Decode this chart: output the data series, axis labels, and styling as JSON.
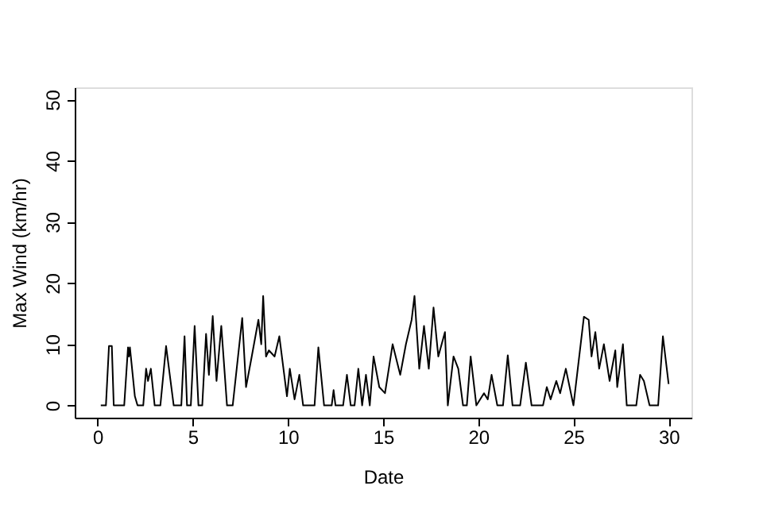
{
  "chart_data": {
    "type": "line",
    "xlabel": "Date",
    "ylabel": "Max Wind (km/hr)",
    "x": [
      0.17,
      0.44,
      0.6,
      0.75,
      0.85,
      1.4,
      1.6,
      1.65,
      1.7,
      1.96,
      2.1,
      2.4,
      2.55,
      2.65,
      2.8,
      3.0,
      3.3,
      3.6,
      4.0,
      4.4,
      4.57,
      4.7,
      4.9,
      5.1,
      5.3,
      5.5,
      5.7,
      5.85,
      6.05,
      6.25,
      6.5,
      6.8,
      7.1,
      7.6,
      7.8,
      8.1,
      8.45,
      8.6,
      8.7,
      8.85,
      9.0,
      9.3,
      9.55,
      9.95,
      10.1,
      10.35,
      10.6,
      10.8,
      11.4,
      11.6,
      11.9,
      12.3,
      12.4,
      12.5,
      12.9,
      13.1,
      13.3,
      13.5,
      13.7,
      13.9,
      14.1,
      14.3,
      14.5,
      14.8,
      15.1,
      15.5,
      15.9,
      16.2,
      16.5,
      16.65,
      16.9,
      17.15,
      17.4,
      17.65,
      17.9,
      18.25,
      18.4,
      18.7,
      18.95,
      19.2,
      19.4,
      19.6,
      19.9,
      20.3,
      20.5,
      20.7,
      21.0,
      21.3,
      21.55,
      21.8,
      22.2,
      22.5,
      22.8,
      23.4,
      23.6,
      23.8,
      24.1,
      24.3,
      24.6,
      25.0,
      25.55,
      25.8,
      25.95,
      26.15,
      26.35,
      26.6,
      26.9,
      27.2,
      27.3,
      27.6,
      27.8,
      28.3,
      28.5,
      28.7,
      29.0,
      29.45,
      29.7,
      30.0
    ],
    "values": [
      0,
      0,
      9.7,
      9.7,
      0,
      0,
      9.5,
      8,
      9.5,
      1.5,
      0,
      0,
      6,
      4,
      6,
      0,
      0,
      9.7,
      0,
      0,
      11.3,
      0,
      0,
      13,
      0,
      0,
      11.7,
      5,
      14.6,
      4,
      13,
      0,
      0,
      14.3,
      3,
      8,
      14,
      10,
      17.9,
      8,
      9,
      8,
      11.3,
      1.5,
      6,
      1,
      5,
      0,
      0,
      9.5,
      0,
      0,
      2.5,
      0,
      0,
      5,
      0,
      0,
      6,
      0,
      5,
      0,
      8,
      3,
      2,
      10,
      5,
      10,
      14,
      17.9,
      6,
      13,
      6,
      16,
      8,
      12,
      0,
      8,
      6,
      0,
      0,
      8,
      0,
      2,
      1,
      5,
      0,
      0,
      8.2,
      0,
      0,
      7,
      0,
      0,
      3,
      1,
      4,
      2,
      6,
      0,
      14.5,
      14,
      8,
      12,
      6,
      10,
      4,
      9,
      3,
      10,
      0,
      0,
      5,
      4,
      0,
      0,
      11.3,
      3.5
    ],
    "color": "#000000",
    "xlim": [
      -1.2,
      31.2
    ],
    "ylim": [
      -2,
      52
    ],
    "xticks": [
      0,
      5,
      10,
      15,
      20,
      25,
      30
    ],
    "yticks": [
      0,
      10,
      20,
      30,
      40,
      50
    ],
    "grid": false
  }
}
